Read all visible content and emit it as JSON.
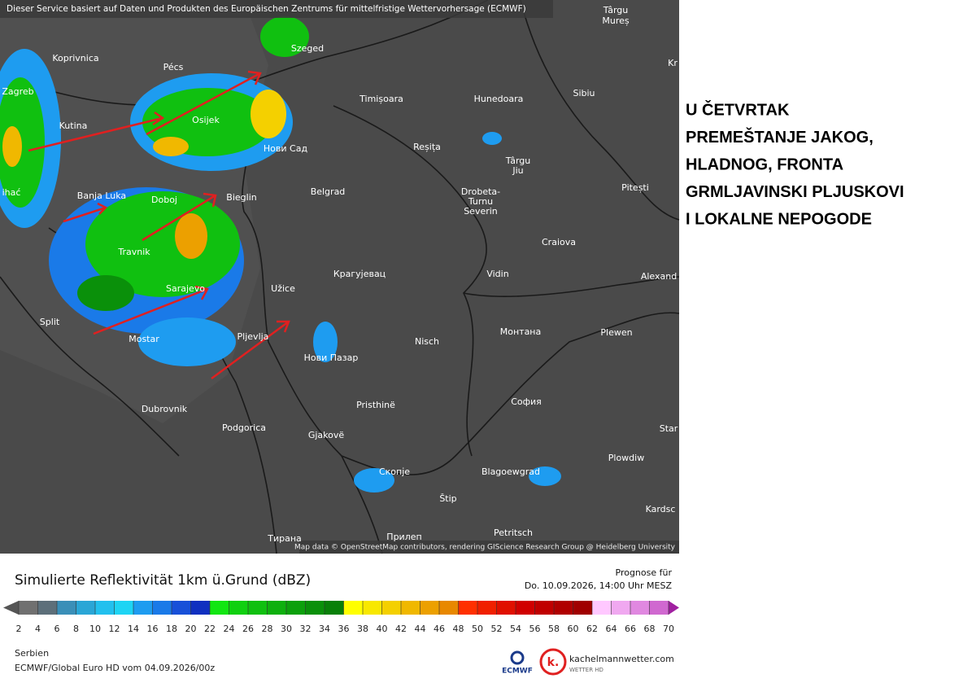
{
  "header_note": "Dieser Service basiert auf Daten und Produkten des Europäischen Zentrums für mittelfristige Wettervorhersage (ECMWF)",
  "attribution": "Map data © OpenStreetMap contributors, rendering GIScience Research Group @ Heidelberg University",
  "cities": [
    "Koprivnica",
    "Pécs",
    "Szeged",
    "Târgu",
    "Mureș",
    "Zagreb",
    "Kutina",
    "Osijek",
    "Timișoara",
    "Hunedoara",
    "Sibiu",
    "Нови Сад",
    "Reșița",
    "Târgu",
    "Jiu",
    "ihać",
    "Banja Luka",
    "Doboj",
    "Bieglin",
    "Belgrad",
    "Drobeta-",
    "Turnu",
    "Severin",
    "Pitești",
    "Craiova",
    "Travnik",
    "Крагујевац",
    "Vidin",
    "Alexand",
    "Sarajevo",
    "Užice",
    "Split",
    "Mostar",
    "Pljevlja",
    "Nisch",
    "Монтана",
    "Plewen",
    "Нови Пазар",
    "Dubrovnik",
    "Pristhinë",
    "София",
    "Podgorica",
    "Gjakovë",
    "Plowdiw",
    "Скопје",
    "Blagoewgrad",
    "Štip",
    "Kardsc",
    "Petritsch",
    "Тирана",
    "Прилеп",
    "Star",
    "Kr"
  ],
  "overlay_text": [
    "U ČETVRTAK",
    "PREMEŠTANJE JAKOG,",
    "HLADNOG, FRONTA",
    "GRMLJAVINSKI PLJUSKOVI",
    "I LOKALNE NEPOGODE"
  ],
  "legend": {
    "title": "Simulierte Reflektivität 1km ü.Grund (dBZ)",
    "forecast_label": "Prognose für",
    "forecast_time": "Do. 10.09.2026, 14:00 Uhr MESZ",
    "ticks": [
      2,
      4,
      6,
      8,
      10,
      12,
      14,
      16,
      18,
      20,
      22,
      24,
      26,
      28,
      30,
      32,
      34,
      36,
      38,
      40,
      42,
      44,
      46,
      48,
      50,
      52,
      54,
      56,
      58,
      60,
      62,
      64,
      66,
      68,
      70
    ],
    "colors": [
      "#707070",
      "#5d6f7a",
      "#3a8fb8",
      "#2aa6d6",
      "#22c0ee",
      "#1ed4f4",
      "#1e9cf0",
      "#1a7ae8",
      "#1850d8",
      "#1030c0",
      "#12e612",
      "#10d010",
      "#10c010",
      "#0eb00e",
      "#0ca00c",
      "#0a900a",
      "#088008",
      "#ffff00",
      "#f8e800",
      "#f4d000",
      "#f0b800",
      "#eca000",
      "#e88800",
      "#ff3000",
      "#f02000",
      "#e01000",
      "#d00000",
      "#c00000",
      "#b00000",
      "#a00000",
      "#ffc8ff",
      "#f0a8f0",
      "#e088e0",
      "#d068d0",
      "#c048c0"
    ],
    "under_color": "#555555",
    "over_color": "#a020a0"
  },
  "footer": {
    "region": "Serbien",
    "model": "ECMWF/Global Euro HD vom  04.09.2026/00z",
    "ecmwf": "ECMWF",
    "brand": "kachelmannwetter.com",
    "brand_sub": "WETTER HD"
  }
}
